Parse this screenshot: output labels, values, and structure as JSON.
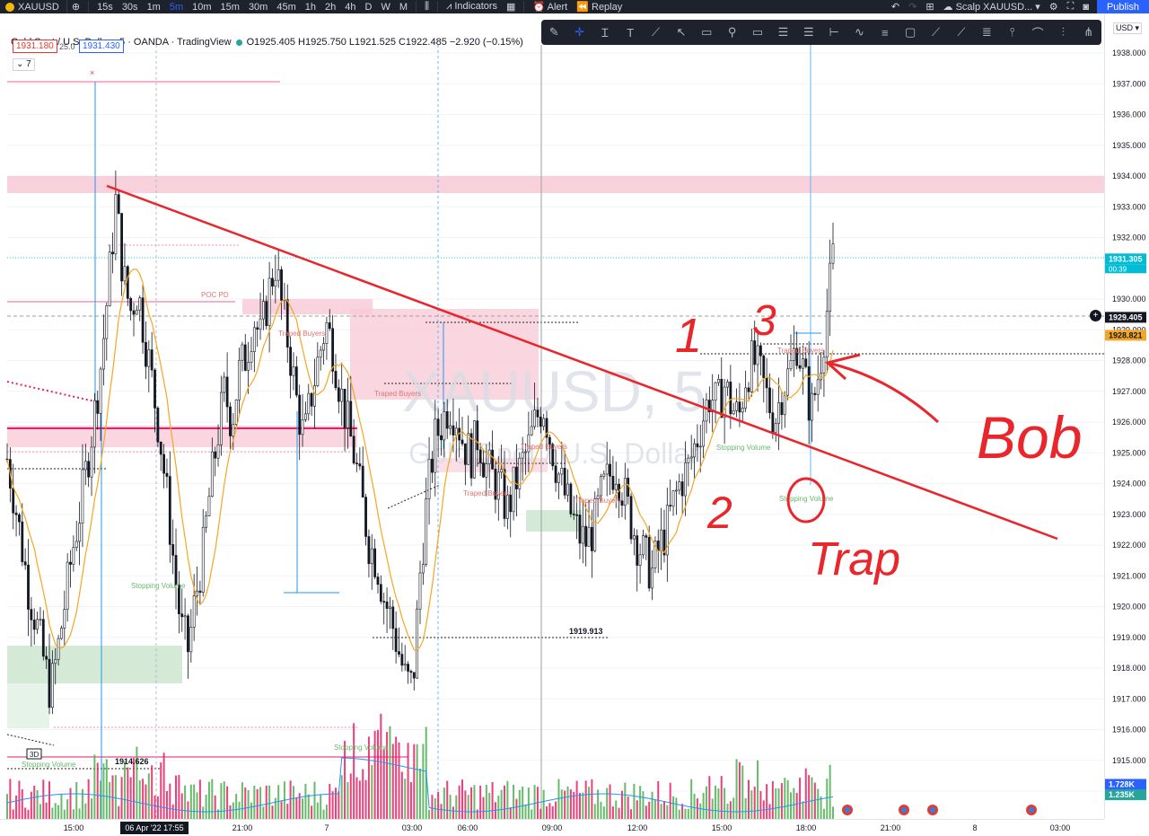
{
  "toolbar": {
    "symbol": "XAUUSD",
    "intervals": [
      "15s",
      "30s",
      "1m",
      "5m",
      "10m",
      "15m",
      "30m",
      "45m",
      "1h",
      "2h",
      "4h",
      "D",
      "W",
      "M"
    ],
    "active_interval": "5m",
    "indicators_label": "Indicators",
    "alert_label": "Alert",
    "replay_label": "Replay",
    "layout_name": "Scalp XAUUSD...",
    "publish_label": "Publish"
  },
  "legend": {
    "title": "Gold Spot / U.S. Dollar · 5 · OANDA · TradingView",
    "ohlc": "O1925.405 H1925.750 L1921.525 C1922.485 −2.920 (−0.15%)",
    "sell_price": "1931.180",
    "spread": "25.0",
    "buy_price": "1931.430",
    "indicator_count": "7"
  },
  "currency": "USD",
  "colors": {
    "up": "#26a69a",
    "down": "#ef5350",
    "vol_up": "#4caf50",
    "vol_down": "#e91e63",
    "ma": "#f5a623",
    "vol_ma": "#2196f3",
    "zone_pink": "#f8c9d6",
    "zone_green": "#cfe8d2",
    "annotation_red": "#e8262c"
  },
  "chart_data": {
    "type": "candlestick",
    "watermark": "XAUUSD, 5",
    "watermark_sub": "Gold Spot / U.S. Dollar",
    "x_ticks": [
      "15:00",
      "06 Apr '22  17:55",
      "21:00",
      "7",
      "03:00",
      "06:00",
      "09:00",
      "12:00",
      "15:00",
      "18:00",
      "21:00",
      "8",
      "03:00"
    ],
    "y_ticks": [
      1938,
      1937,
      1936,
      1935,
      1934,
      1933,
      1932,
      1930,
      1929,
      1928,
      1927,
      1926,
      1925,
      1924,
      1923,
      1922,
      1921,
      1920,
      1919,
      1918,
      1917,
      1916,
      1915,
      1914
    ],
    "ylim": [
      1913.8,
      1938.6
    ],
    "price_labels": {
      "last": "1931.305",
      "countdown": "00:39",
      "crosshair": "1929.405",
      "ma_value": "1928.821",
      "vol_a": "1.728K",
      "vol_b": "1.235K"
    },
    "annotations_text": {
      "poc": "POC PD",
      "traped_buyers": "Traped Buyers",
      "stopping_volume": "Stopping Volume",
      "level_a": "1919.913",
      "level_b": "1914.626",
      "tf_badge": "3D",
      "hw_1": "1",
      "hw_2": "2",
      "hw_3": "3",
      "hw_bob": "Bob",
      "hw_trap": "Trap"
    },
    "price_path": [
      1924.8,
      1923.5,
      1922.0,
      1920.5,
      1919.5,
      1918.3,
      1917.2,
      1918.6,
      1920.2,
      1921.8,
      1923.1,
      1924.6,
      1926.2,
      1928.0,
      1930.5,
      1933.2,
      1930.8,
      1929.6,
      1930.3,
      1928.8,
      1927.3,
      1925.7,
      1923.7,
      1921.4,
      1919.3,
      1918.6,
      1920.3,
      1921.7,
      1923.8,
      1925.5,
      1927.0,
      1926.0,
      1927.6,
      1928.2,
      1929.4,
      1928.7,
      1930.1,
      1931.2,
      1929.6,
      1928.3,
      1926.6,
      1925.4,
      1926.9,
      1928.1,
      1929.2,
      1928.4,
      1927.0,
      1925.9,
      1924.8,
      1923.4,
      1922.0,
      1921.5,
      1920.3,
      1919.6,
      1918.6,
      1917.6,
      1917.4,
      1921.1,
      1923.6,
      1925.4,
      1926.0,
      1926.6,
      1926.2,
      1925.3,
      1924.9,
      1925.6,
      1924.6,
      1924.2,
      1923.9,
      1923.1,
      1923.9,
      1924.6,
      1925.2,
      1926.1,
      1926.6,
      1925.4,
      1924.4,
      1923.6,
      1922.9,
      1922.3,
      1922.1,
      1922.6,
      1923.6,
      1924.2,
      1924.6,
      1923.8,
      1922.9,
      1922.1,
      1921.6,
      1921.1,
      1921.9,
      1922.5,
      1923.4,
      1924.1,
      1924.5,
      1925.3,
      1926.1,
      1926.9,
      1926.5,
      1927.2,
      1926.5,
      1926.1,
      1927.6,
      1928.0,
      1927.5,
      1926.7,
      1926.1,
      1927.1,
      1927.6,
      1928.6,
      1927.5,
      1926.3,
      1927.6,
      1929.3,
      1931.3
    ]
  }
}
